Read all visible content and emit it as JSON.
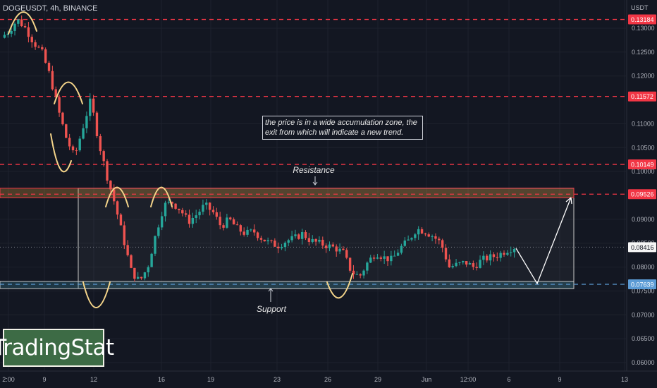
{
  "header": {
    "symbol": "DOGEUSDT, 4h, BINANCE",
    "currency": "USDT"
  },
  "logo": {
    "text": "TradingStat"
  },
  "annotations": {
    "note": "the price is in a wide accumulation zone, the exit from which will indicate a new trend.",
    "resistance_label": "Resistance",
    "support_label": "Support"
  },
  "colors": {
    "background": "#131722",
    "bull": "#26a69a",
    "bear": "#ef5350",
    "level_red": "#f23645",
    "level_blue": "#5b9bd5",
    "wave": "#f5d58a"
  },
  "chart_data": {
    "type": "candlestick",
    "title": "",
    "ylabel": "",
    "xlabel": "",
    "ylim": [
      0.059,
      0.134
    ],
    "y_ticks": [
      "0.13000",
      "0.12500",
      "0.12000",
      "0.11000",
      "0.10500",
      "0.10000",
      "0.09000",
      "0.08500",
      "0.08000",
      "0.07500",
      "0.07000",
      "0.06500",
      "0.06000"
    ],
    "x_ticks": [
      "2:00",
      "9",
      "12",
      "16",
      "19",
      "23",
      "26",
      "29",
      "Jun",
      "12:00",
      "6",
      "9",
      "13"
    ],
    "levels": [
      {
        "value": 0.13184,
        "label": "0.13184",
        "color": "#f23645"
      },
      {
        "value": 0.11572,
        "label": "0.11572",
        "color": "#f23645"
      },
      {
        "value": 0.10149,
        "label": "0.10149",
        "color": "#f23645"
      },
      {
        "value": 0.09526,
        "label": "0.09526",
        "color": "#f23645"
      },
      {
        "value": 0.07639,
        "label": "0.07639",
        "color": "#5b9bd5"
      }
    ],
    "last_price": {
      "value": 0.08416,
      "label": "0.08416"
    },
    "zones": {
      "resistance": [
        0.0945,
        0.0965
      ],
      "support": [
        0.0755,
        0.077
      ],
      "accumulation": [
        0.0755,
        0.0965
      ]
    },
    "price_path": [
      0.128,
      0.1295,
      0.1318,
      0.13,
      0.127,
      0.125,
      0.12,
      0.113,
      0.107,
      0.103,
      0.109,
      0.115,
      0.106,
      0.099,
      0.093,
      0.086,
      0.079,
      0.077,
      0.08,
      0.087,
      0.093,
      0.0935,
      0.092,
      0.0895,
      0.091,
      0.093,
      0.0915,
      0.0885,
      0.09,
      0.088,
      0.087,
      0.0875,
      0.086,
      0.085,
      0.0845,
      0.0855,
      0.086,
      0.087,
      0.0855,
      0.085,
      0.0845,
      0.084,
      0.083,
      0.079,
      0.078,
      0.081,
      0.083,
      0.082,
      0.0815,
      0.084,
      0.0855,
      0.088,
      0.0875,
      0.0865,
      0.085,
      0.08,
      0.0805,
      0.081,
      0.08,
      0.0815,
      0.082,
      0.0825,
      0.0835,
      0.0842
    ]
  }
}
